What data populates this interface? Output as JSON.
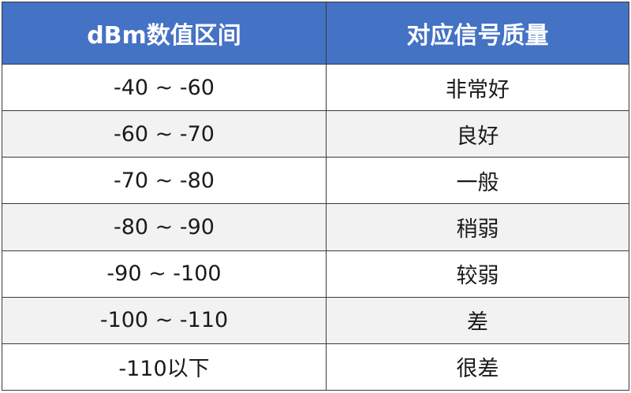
{
  "colors": {
    "header_bg": "#4472C4",
    "header_text": "#ffffff",
    "alt_row_bg": "#f2f2f2"
  },
  "table": {
    "headers": [
      "dBm数值区间",
      "对应信号质量"
    ],
    "rows": [
      [
        "-40 ~ -60",
        "非常好"
      ],
      [
        "-60 ~ -70",
        "良好"
      ],
      [
        "-70 ~ -80",
        "一般"
      ],
      [
        "-80 ~ -90",
        "稍弱"
      ],
      [
        "-90 ~ -100",
        "较弱"
      ],
      [
        "-100 ~ -110",
        "差"
      ],
      [
        "-110以下",
        "很差"
      ]
    ]
  }
}
